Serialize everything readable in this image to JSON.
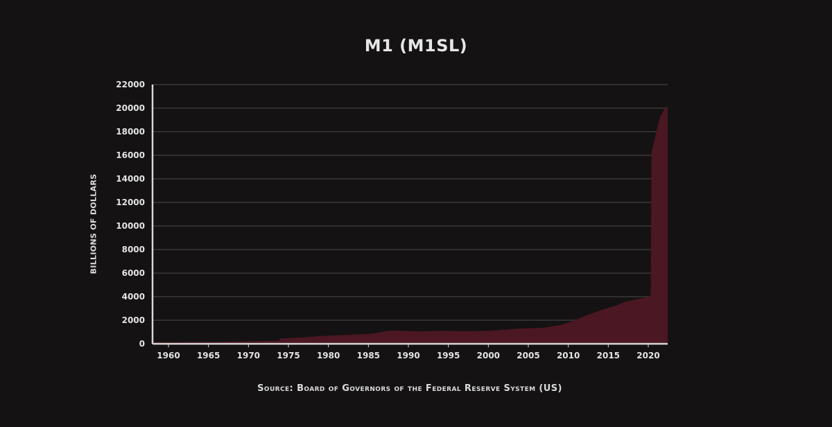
{
  "chart": {
    "title": "M1 (M1SL)",
    "ylabel": "BILLIONS OF DOLLARS",
    "source": "Source: Board of Governors of the Federal Reserve System (US)"
  },
  "colors": {
    "background": "#141212",
    "fill": "#4a1722",
    "gridline": "#3a3a3a",
    "axis": "#d8d8d8",
    "text": "#e4e4e4"
  },
  "chart_data": {
    "type": "area",
    "title": "M1 (M1SL)",
    "xlabel": "",
    "ylabel": "Billions of Dollars",
    "source": "Source: Board of Governors of the Federal Reserve System (US)",
    "xlim": [
      1958,
      2022.4
    ],
    "ylim": [
      0,
      22000
    ],
    "x_ticks": [
      1960,
      1965,
      1970,
      1975,
      1980,
      1985,
      1990,
      1995,
      2000,
      2005,
      2010,
      2015,
      2020
    ],
    "y_ticks": [
      0,
      2000,
      4000,
      6000,
      8000,
      10000,
      12000,
      14000,
      16000,
      18000,
      20000,
      22000
    ],
    "grid": "horizontal",
    "legend": "none",
    "x": [
      1959,
      1962,
      1965,
      1968,
      1970,
      1972,
      1973.8,
      1974,
      1975,
      1977,
      1979,
      1981,
      1983,
      1985,
      1986,
      1987,
      1988,
      1990,
      1992,
      1994,
      1996,
      1998,
      2000,
      2002,
      2004,
      2006,
      2007,
      2008,
      2009,
      2010,
      2011,
      2012,
      2013,
      2014,
      2015,
      2016,
      2017,
      2018,
      2019,
      2020.1,
      2020.3,
      2020.4,
      2020.6,
      2021,
      2021.5,
      2022,
      2022.3
    ],
    "values": [
      140,
      145,
      165,
      190,
      210,
      240,
      270,
      450,
      480,
      560,
      650,
      720,
      780,
      850,
      920,
      1060,
      1130,
      1080,
      1050,
      1100,
      1080,
      1080,
      1100,
      1200,
      1300,
      1350,
      1370,
      1480,
      1600,
      1800,
      2050,
      2350,
      2600,
      2850,
      3050,
      3250,
      3550,
      3700,
      3850,
      4000,
      4100,
      16200,
      16800,
      18000,
      19300,
      19900,
      20100
    ]
  }
}
